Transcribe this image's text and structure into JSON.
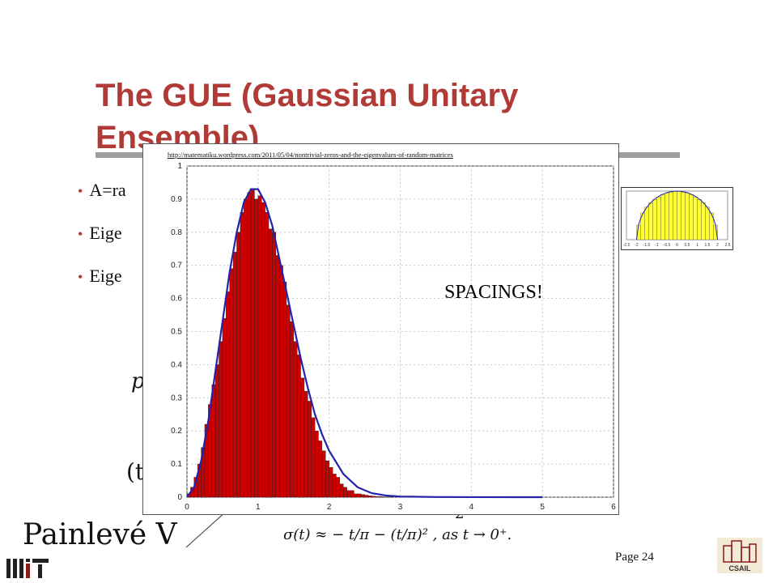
{
  "slide": {
    "title": "The GUE (Gaussian Unitary Ensemble)",
    "bullets": [
      "A=ra",
      "Eige",
      "Eige"
    ],
    "painleve_label": "Painlevé V",
    "sigma_formula": "σ(t) ≈ − t/π − (t/π)² ,     as t → 0⁺.",
    "partial_p": "p",
    "partial_t": "(t",
    "page_number": "Page 24",
    "accent_color": "#b03a36",
    "logos": [
      "mit-logo",
      "csail-logo"
    ]
  },
  "overlay": {
    "source_url": "http://matematiku.wordpress.com/2011/05/04/nontrivial-zeros-and-the-eigenvalues-of-random-matrices",
    "annotation": "SPACINGS!"
  },
  "chart_data": [
    {
      "type": "bar",
      "title": "",
      "xlabel": "",
      "ylabel": "",
      "xlim": [
        0,
        6
      ],
      "ylim": [
        0,
        1
      ],
      "grid": true,
      "xticks": [
        "0",
        "1",
        "2",
        "3",
        "4",
        "5",
        "6"
      ],
      "yticks": [
        "0",
        "0.1",
        "0.2",
        "0.3",
        "0.4",
        "0.5",
        "0.6",
        "0.7",
        "0.8",
        "0.9",
        "1"
      ],
      "bar_color": "#cc0000",
      "curve_color": "#2222aa",
      "bin_width": 0.05,
      "x": [
        0.025,
        0.075,
        0.125,
        0.175,
        0.225,
        0.275,
        0.325,
        0.375,
        0.425,
        0.475,
        0.525,
        0.575,
        0.625,
        0.675,
        0.725,
        0.775,
        0.825,
        0.875,
        0.925,
        0.975,
        1.025,
        1.075,
        1.125,
        1.175,
        1.225,
        1.275,
        1.325,
        1.375,
        1.425,
        1.475,
        1.525,
        1.575,
        1.625,
        1.675,
        1.725,
        1.775,
        1.825,
        1.875,
        1.925,
        1.975,
        2.025,
        2.075,
        2.125,
        2.175,
        2.225,
        2.275,
        2.325,
        2.375,
        2.425,
        2.475,
        2.525,
        2.575,
        2.625,
        2.675,
        2.725,
        2.775,
        2.825,
        2.875
      ],
      "values": [
        0.01,
        0.03,
        0.06,
        0.1,
        0.15,
        0.22,
        0.28,
        0.34,
        0.4,
        0.47,
        0.54,
        0.62,
        0.69,
        0.74,
        0.8,
        0.86,
        0.9,
        0.92,
        0.93,
        0.9,
        0.91,
        0.89,
        0.86,
        0.81,
        0.8,
        0.73,
        0.7,
        0.65,
        0.58,
        0.53,
        0.47,
        0.43,
        0.36,
        0.32,
        0.29,
        0.24,
        0.2,
        0.17,
        0.14,
        0.11,
        0.09,
        0.07,
        0.06,
        0.04,
        0.03,
        0.02,
        0.02,
        0.01,
        0.01,
        0.008,
        0.006,
        0.004,
        0.003,
        0.002,
        0.002,
        0.001,
        0.001,
        0.001
      ],
      "curve": {
        "x": [
          0,
          0.1,
          0.2,
          0.3,
          0.4,
          0.5,
          0.6,
          0.7,
          0.8,
          0.9,
          1.0,
          1.1,
          1.2,
          1.3,
          1.4,
          1.5,
          1.6,
          1.7,
          1.8,
          1.9,
          2.0,
          2.2,
          2.4,
          2.6,
          2.8,
          3.0,
          3.5,
          4.0,
          5.0
        ],
        "y": [
          0,
          0.03,
          0.11,
          0.23,
          0.38,
          0.53,
          0.68,
          0.8,
          0.89,
          0.93,
          0.93,
          0.89,
          0.82,
          0.72,
          0.62,
          0.52,
          0.42,
          0.33,
          0.25,
          0.19,
          0.14,
          0.07,
          0.03,
          0.012,
          0.005,
          0.002,
          0.0005,
          0.0001,
          0
        ]
      }
    },
    {
      "type": "bar",
      "title": "",
      "xticks": [
        "-2.5",
        "-2",
        "-1.5",
        "-1",
        "-0.5",
        "0",
        "0.5",
        "1",
        "1.5",
        "2",
        "2.5"
      ],
      "xlim": [
        -2.5,
        2.5
      ],
      "ylim": [
        0,
        1
      ],
      "bar_color": "#ffff33",
      "curve_color": "#2222aa",
      "x": [
        -1.9,
        -1.7,
        -1.5,
        -1.3,
        -1.1,
        -0.9,
        -0.7,
        -0.5,
        -0.3,
        -0.1,
        0.1,
        0.3,
        0.5,
        0.7,
        0.9,
        1.1,
        1.3,
        1.5,
        1.7,
        1.9
      ],
      "values": [
        0.3,
        0.55,
        0.67,
        0.76,
        0.83,
        0.88,
        0.93,
        0.96,
        0.98,
        1.0,
        1.0,
        0.98,
        0.96,
        0.93,
        0.88,
        0.83,
        0.76,
        0.67,
        0.55,
        0.3
      ]
    }
  ]
}
